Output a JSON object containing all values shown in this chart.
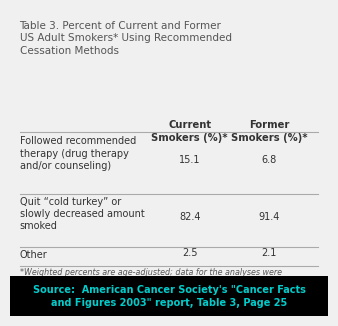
{
  "title": "Table 3. Percent of Current and Former\nUS Adult Smokers* Using Recommended\nCessation Methods",
  "col_headers": [
    "Current\nSmokers (%)*",
    "Former\nSmokers (%)*"
  ],
  "rows": [
    {
      "label": "Followed recommended\ntherapy (drug therapy\nand/or counseling)",
      "values": [
        "15.1",
        "6.8"
      ]
    },
    {
      "label": "Quit “cold turkey” or\nslowly decreased amount\nsmoked",
      "values": [
        "82.4",
        "91.4"
      ]
    },
    {
      "label": "Other",
      "values": [
        "2.5",
        "2.1"
      ]
    }
  ],
  "footnote": "*Weighted percents are age-adjusted; data for the analyses were\nderived from the National Health Interview Survey, 2000, National\nCenter for Health Statistics, Centers for Disease Control and Prevention.",
  "source_text": "Source:  American Cancer Society's \"Cancer Facts\nand Figures 2003\" report, Table 3, Page 25",
  "bg_color": "#f0f0f0",
  "source_bg": "#000000",
  "source_text_color": "#00cccc",
  "title_color": "#555555",
  "body_text_color": "#333333",
  "footnote_color": "#555555",
  "line_color": "#aaaaaa",
  "title_fontsize": 7.5,
  "header_fontsize": 7.2,
  "body_fontsize": 7.0,
  "footnote_fontsize": 5.8,
  "source_fontsize": 7.0
}
